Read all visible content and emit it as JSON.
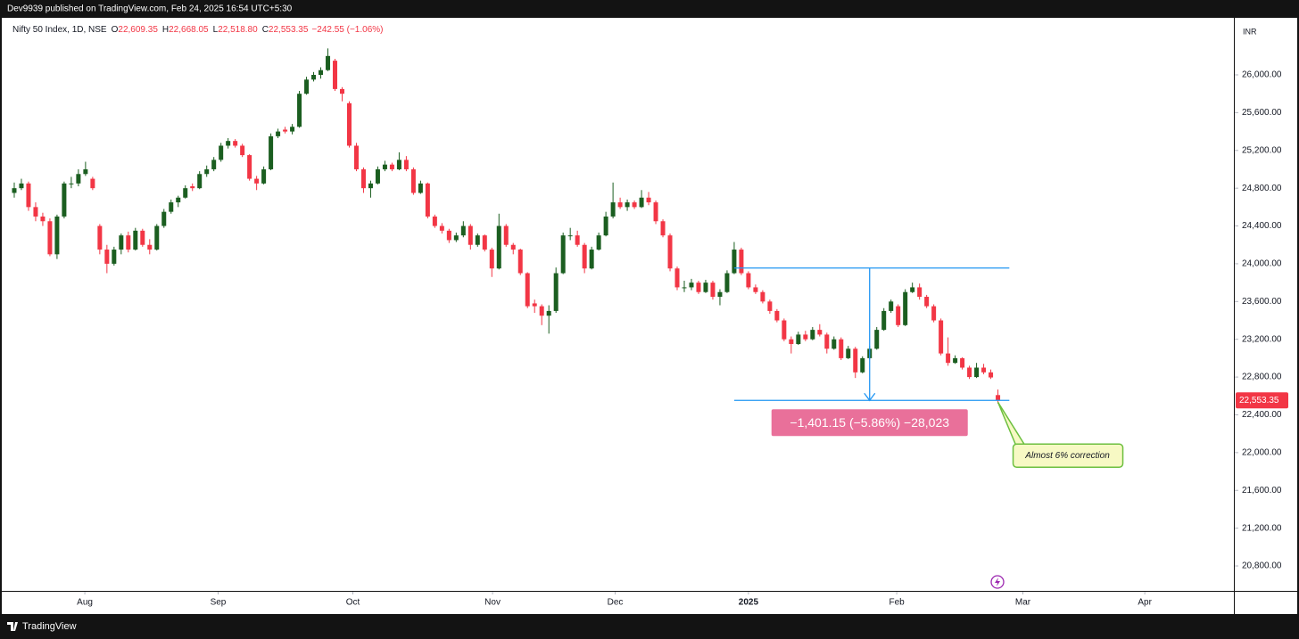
{
  "chart_data": {
    "type": "candlestick",
    "title": "Dev9939 published on TradingView.com, Feb 24, 2025 16:54 UTC+5:30",
    "symbol": "Nifty 50 Index, 1D, NSE",
    "legend_fields": [
      {
        "key": "O",
        "value": "22,609.35"
      },
      {
        "key": "H",
        "value": "22,668.05"
      },
      {
        "key": "L",
        "value": "22,518.80"
      },
      {
        "key": "C",
        "value": "22,553.35"
      }
    ],
    "change_label": "−242.55 (−1.06%)",
    "currency": "INR",
    "last_price": 22553.35,
    "last_price_label": "22,553.35",
    "up_color": "#1b5e20",
    "down_color": "#f23645",
    "grid": false,
    "ohlc": [
      [
        24750,
        24860,
        24700,
        24800
      ],
      [
        24800,
        24900,
        24780,
        24850
      ],
      [
        24850,
        24870,
        24560,
        24600
      ],
      [
        24600,
        24650,
        24450,
        24500
      ],
      [
        24500,
        24540,
        24400,
        24450
      ],
      [
        24450,
        24480,
        24080,
        24100
      ],
      [
        24100,
        24520,
        24050,
        24500
      ],
      [
        24500,
        24870,
        24480,
        24850
      ],
      [
        24850,
        24920,
        24800,
        24850
      ],
      [
        24850,
        25000,
        24820,
        24950
      ],
      [
        24950,
        25080,
        24930,
        25000
      ],
      [
        24900,
        24920,
        24780,
        24800
      ],
      [
        24400,
        24420,
        24100,
        24150
      ],
      [
        24150,
        24200,
        23900,
        24000
      ],
      [
        24000,
        24180,
        23980,
        24150
      ],
      [
        24150,
        24320,
        24100,
        24300
      ],
      [
        24300,
        24340,
        24120,
        24150
      ],
      [
        24150,
        24380,
        24140,
        24350
      ],
      [
        24350,
        24370,
        24180,
        24200
      ],
      [
        24200,
        24260,
        24100,
        24150
      ],
      [
        24150,
        24420,
        24140,
        24400
      ],
      [
        24400,
        24580,
        24380,
        24550
      ],
      [
        24550,
        24680,
        24530,
        24650
      ],
      [
        24650,
        24720,
        24600,
        24700
      ],
      [
        24700,
        24830,
        24690,
        24800
      ],
      [
        24820,
        24850,
        24770,
        24800
      ],
      [
        24800,
        24980,
        24790,
        24950
      ],
      [
        24950,
        25040,
        24920,
        25000
      ],
      [
        25000,
        25130,
        24980,
        25100
      ],
      [
        25100,
        25280,
        25080,
        25250
      ],
      [
        25250,
        25330,
        25220,
        25300
      ],
      [
        25300,
        25320,
        25230,
        25250
      ],
      [
        25250,
        25270,
        25130,
        25150
      ],
      [
        25150,
        25160,
        24880,
        24900
      ],
      [
        24900,
        24930,
        24780,
        24850
      ],
      [
        24850,
        25030,
        24840,
        25000
      ],
      [
        25000,
        25380,
        24990,
        25350
      ],
      [
        25350,
        25430,
        25330,
        25400
      ],
      [
        25420,
        25450,
        25380,
        25400
      ],
      [
        25400,
        25480,
        25370,
        25450
      ],
      [
        25450,
        25830,
        25440,
        25800
      ],
      [
        25800,
        25980,
        25790,
        25950
      ],
      [
        25950,
        26030,
        25930,
        26000
      ],
      [
        26000,
        26080,
        25960,
        26050
      ],
      [
        26050,
        26280,
        26040,
        26200
      ],
      [
        26150,
        26170,
        25830,
        25850
      ],
      [
        25850,
        25870,
        25720,
        25800
      ],
      [
        25700,
        25720,
        25230,
        25250
      ],
      [
        25250,
        25280,
        24980,
        25000
      ],
      [
        25000,
        25020,
        24750,
        24800
      ],
      [
        24800,
        24880,
        24700,
        24850
      ],
      [
        24850,
        25030,
        24840,
        25000
      ],
      [
        25000,
        25090,
        24980,
        25050
      ],
      [
        25050,
        25070,
        24980,
        25000
      ],
      [
        25000,
        25180,
        24990,
        25100
      ],
      [
        25100,
        25140,
        24980,
        25000
      ],
      [
        25000,
        25020,
        24730,
        24750
      ],
      [
        24750,
        24880,
        24740,
        24850
      ],
      [
        24850,
        24860,
        24480,
        24500
      ],
      [
        24500,
        24520,
        24380,
        24400
      ],
      [
        24400,
        24430,
        24320,
        24350
      ],
      [
        24350,
        24370,
        24220,
        24250
      ],
      [
        24250,
        24330,
        24230,
        24300
      ],
      [
        24300,
        24450,
        24280,
        24400
      ],
      [
        24400,
        24420,
        24150,
        24200
      ],
      [
        24200,
        24320,
        24180,
        24300
      ],
      [
        24300,
        24310,
        24130,
        24150
      ],
      [
        24150,
        24170,
        23860,
        23950
      ],
      [
        23950,
        24530,
        23940,
        24400
      ],
      [
        24400,
        24420,
        24180,
        24200
      ],
      [
        24200,
        24220,
        24100,
        24150
      ],
      [
        24150,
        24160,
        23880,
        23900
      ],
      [
        23900,
        23910,
        23530,
        23550
      ],
      [
        23580,
        23620,
        23480,
        23550
      ],
      [
        23550,
        23570,
        23350,
        23450
      ],
      [
        23450,
        23560,
        23260,
        23500
      ],
      [
        23500,
        23960,
        23480,
        23900
      ],
      [
        23900,
        24330,
        23890,
        24300
      ],
      [
        24300,
        24380,
        24250,
        24300
      ],
      [
        24300,
        24350,
        24180,
        24200
      ],
      [
        24200,
        24220,
        23900,
        23950
      ],
      [
        23950,
        24180,
        23940,
        24150
      ],
      [
        24150,
        24330,
        24140,
        24300
      ],
      [
        24300,
        24550,
        24290,
        24500
      ],
      [
        24500,
        24860,
        24480,
        24650
      ],
      [
        24650,
        24700,
        24580,
        24600
      ],
      [
        24600,
        24680,
        24560,
        24650
      ],
      [
        24650,
        24670,
        24580,
        24600
      ],
      [
        24600,
        24780,
        24590,
        24700
      ],
      [
        24700,
        24760,
        24620,
        24650
      ],
      [
        24650,
        24670,
        24420,
        24450
      ],
      [
        24450,
        24470,
        24280,
        24300
      ],
      [
        24300,
        24320,
        23920,
        23950
      ],
      [
        23950,
        23970,
        23720,
        23750
      ],
      [
        23750,
        23820,
        23700,
        23750
      ],
      [
        23750,
        23840,
        23720,
        23800
      ],
      [
        23800,
        23820,
        23680,
        23700
      ],
      [
        23700,
        23830,
        23690,
        23800
      ],
      [
        23800,
        23820,
        23620,
        23650
      ],
      [
        23650,
        23730,
        23560,
        23700
      ],
      [
        23700,
        23930,
        23690,
        23900
      ],
      [
        23900,
        24230,
        23890,
        24150
      ],
      [
        24150,
        24170,
        23880,
        23900
      ],
      [
        23900,
        23920,
        23730,
        23750
      ],
      [
        23750,
        23780,
        23680,
        23700
      ],
      [
        23700,
        23720,
        23580,
        23600
      ],
      [
        23600,
        23620,
        23470,
        23500
      ],
      [
        23500,
        23520,
        23380,
        23400
      ],
      [
        23400,
        23420,
        23180,
        23200
      ],
      [
        23200,
        23230,
        23050,
        23150
      ],
      [
        23150,
        23280,
        23140,
        23250
      ],
      [
        23250,
        23290,
        23180,
        23200
      ],
      [
        23200,
        23330,
        23190,
        23300
      ],
      [
        23300,
        23360,
        23230,
        23250
      ],
      [
        23250,
        23270,
        23050,
        23100
      ],
      [
        23100,
        23230,
        23090,
        23200
      ],
      [
        23200,
        23220,
        22980,
        23000
      ],
      [
        23000,
        23130,
        22990,
        23100
      ],
      [
        23100,
        23120,
        22790,
        22850
      ],
      [
        22850,
        23020,
        22840,
        23000
      ],
      [
        23000,
        23130,
        22990,
        23100
      ],
      [
        23100,
        23330,
        23090,
        23300
      ],
      [
        23300,
        23530,
        23290,
        23500
      ],
      [
        23500,
        23620,
        23480,
        23600
      ],
      [
        23550,
        23570,
        23330,
        23350
      ],
      [
        23350,
        23730,
        23340,
        23700
      ],
      [
        23700,
        23800,
        23690,
        23750
      ],
      [
        23750,
        23790,
        23620,
        23650
      ],
      [
        23650,
        23670,
        23530,
        23550
      ],
      [
        23550,
        23570,
        23380,
        23400
      ],
      [
        23400,
        23420,
        23030,
        23050
      ],
      [
        23050,
        23220,
        22920,
        22950
      ],
      [
        22950,
        23030,
        22940,
        23000
      ],
      [
        23000,
        23010,
        22880,
        22900
      ],
      [
        22900,
        22920,
        22780,
        22800
      ],
      [
        22800,
        22950,
        22790,
        22900
      ],
      [
        22900,
        22940,
        22830,
        22850
      ],
      [
        22850,
        22880,
        22780,
        22795.9
      ],
      [
        22609.35,
        22668.05,
        22518.8,
        22553.35
      ]
    ],
    "xlim": [
      -1.75,
      171.1
    ],
    "xticks": [
      {
        "value": 9.9,
        "label": "Aug"
      },
      {
        "value": 28.6,
        "label": "Sep"
      },
      {
        "value": 47.5,
        "label": "Oct"
      },
      {
        "value": 67.1,
        "label": "Nov"
      },
      {
        "value": 84.3,
        "label": "Dec"
      },
      {
        "value": 103,
        "label": "2025"
      },
      {
        "value": 123.8,
        "label": "Feb"
      },
      {
        "value": 141.5,
        "label": "Mar"
      },
      {
        "value": 158.6,
        "label": "Apr"
      }
    ],
    "ylim": [
      20536,
      26604
    ],
    "yticks": [
      {
        "value": 20800,
        "label": "20,800.00"
      },
      {
        "value": 21200,
        "label": "21,200.00"
      },
      {
        "value": 21600,
        "label": "21,600.00"
      },
      {
        "value": 22000,
        "label": "22,000.00"
      },
      {
        "value": 22400,
        "label": "22,400.00"
      },
      {
        "value": 22800,
        "label": "22,800.00"
      },
      {
        "value": 23200,
        "label": "23,200.00"
      },
      {
        "value": 23600,
        "label": "23,600.00"
      },
      {
        "value": 24000,
        "label": "24,000.00"
      },
      {
        "value": 24400,
        "label": "24,400.00"
      },
      {
        "value": 24800,
        "label": "24,800.00"
      },
      {
        "value": 25200,
        "label": "25,200.00"
      },
      {
        "value": 25600,
        "label": "25,600.00"
      },
      {
        "value": 26000,
        "label": "26,000.00"
      }
    ],
    "measure": {
      "high": 23954.5,
      "low": 22553.35,
      "label": "−1,401.15 (−5.86%) −28,023"
    },
    "callout": "Almost 6% correction",
    "brand": "TradingView"
  }
}
